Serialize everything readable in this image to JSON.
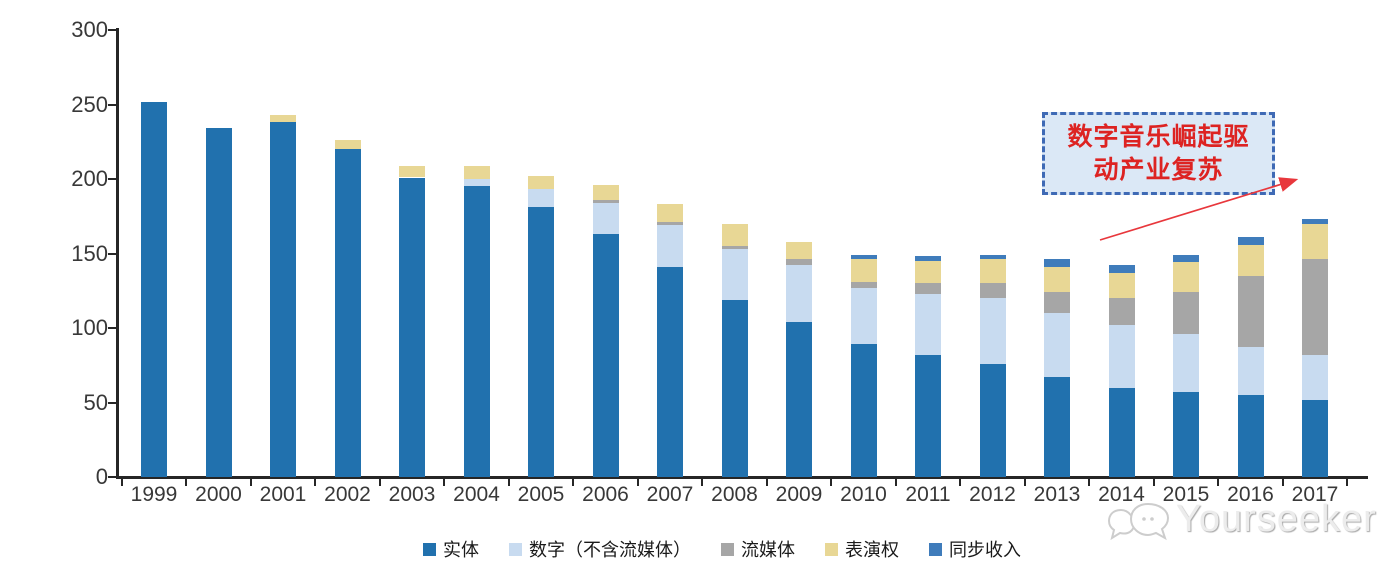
{
  "chart_data": {
    "type": "bar",
    "stacked": true,
    "title": "",
    "xlabel": "",
    "ylabel": "",
    "ylim": [
      0,
      300
    ],
    "yticks": [
      0,
      50,
      100,
      150,
      200,
      250,
      300
    ],
    "grid": false,
    "legend_position": "bottom",
    "categories": [
      "1999",
      "2000",
      "2001",
      "2002",
      "2003",
      "2004",
      "2005",
      "2006",
      "2007",
      "2008",
      "2009",
      "2010",
      "2011",
      "2012",
      "2013",
      "2014",
      "2015",
      "2016",
      "2017"
    ],
    "series": [
      {
        "name": "实体",
        "color": "#2171ae",
        "values": [
          252,
          234,
          238,
          220,
          201,
          195,
          181,
          163,
          141,
          119,
          104,
          89,
          82,
          76,
          67,
          60,
          57,
          55,
          52
        ]
      },
      {
        "name": "数字（不含流媒体）",
        "color": "#c8dbf0",
        "values": [
          0,
          0,
          0,
          0,
          0,
          5,
          12,
          21,
          28,
          34,
          38,
          38,
          41,
          44,
          43,
          42,
          39,
          32,
          30
        ]
      },
      {
        "name": "流媒体",
        "color": "#a6a6a6",
        "values": [
          0,
          0,
          0,
          0,
          0,
          0,
          0,
          2,
          2,
          2,
          4,
          4,
          7,
          10,
          14,
          18,
          28,
          48,
          64
        ]
      },
      {
        "name": "表演权",
        "color": "#e8d795",
        "values": [
          0,
          0,
          5,
          6,
          8,
          9,
          9,
          10,
          12,
          15,
          12,
          15,
          15,
          16,
          17,
          17,
          20,
          21,
          24
        ]
      },
      {
        "name": "同步收入",
        "color": "#3f7cbb",
        "values": [
          0,
          0,
          0,
          0,
          0,
          0,
          0,
          0,
          0,
          0,
          0,
          3,
          3,
          3,
          5,
          5,
          5,
          5,
          3
        ]
      }
    ]
  },
  "annotation": {
    "line1": "数字音乐崛起驱",
    "line2": "动产业复苏",
    "arrow_color": "#e8373c"
  },
  "watermark": {
    "text": "Yourseeker",
    "logo": "chat-bubbles-icon"
  }
}
